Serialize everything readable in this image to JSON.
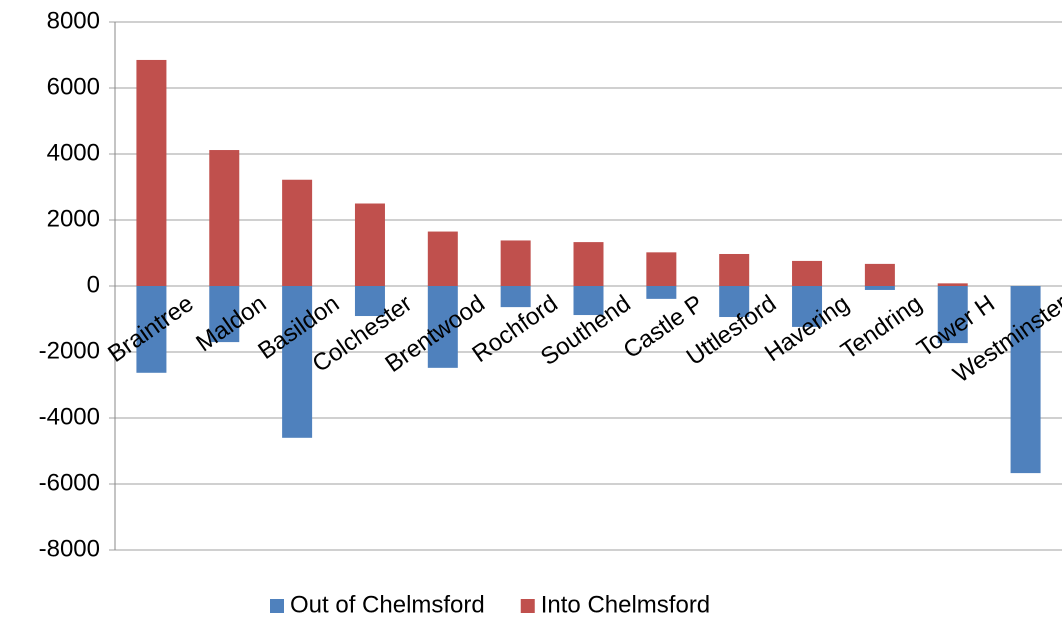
{
  "chart_data": {
    "type": "bar",
    "categories": [
      "Braintree",
      "Maldon",
      "Basildon",
      "Colchester",
      "Brentwood",
      "Rochford",
      "Southend",
      "Castle P",
      "Uttlesford",
      "Havering",
      "Tendring",
      "Tower H",
      "Westminster"
    ],
    "series": [
      {
        "name": "Out of Chelmsford",
        "color": "#4f81bd",
        "values": [
          -2630,
          -1700,
          -4600,
          -910,
          -2480,
          -640,
          -880,
          -390,
          -940,
          -1240,
          -120,
          -1730,
          -5670
        ]
      },
      {
        "name": "Into Chelmsford",
        "color": "#c0504d",
        "values": [
          6850,
          4120,
          3220,
          2500,
          1650,
          1380,
          1330,
          1020,
          970,
          760,
          670,
          80,
          0
        ]
      }
    ],
    "ylim": [
      -8000,
      8000
    ],
    "yticks": [
      -8000,
      -6000,
      -4000,
      -2000,
      0,
      2000,
      4000,
      6000,
      8000
    ],
    "grid": true,
    "legend": "bottom"
  }
}
